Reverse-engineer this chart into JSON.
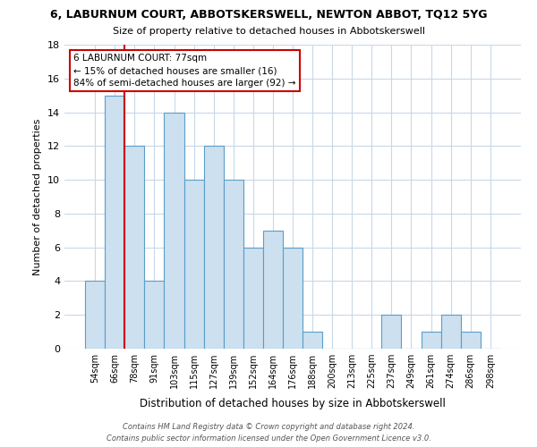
{
  "title": "6, LABURNUM COURT, ABBOTSKERSWELL, NEWTON ABBOT, TQ12 5YG",
  "subtitle": "Size of property relative to detached houses in Abbotskerswell",
  "xlabel": "Distribution of detached houses by size in Abbotskerswell",
  "ylabel": "Number of detached properties",
  "bin_labels": [
    "54sqm",
    "66sqm",
    "78sqm",
    "91sqm",
    "103sqm",
    "115sqm",
    "127sqm",
    "139sqm",
    "152sqm",
    "164sqm",
    "176sqm",
    "188sqm",
    "200sqm",
    "213sqm",
    "225sqm",
    "237sqm",
    "249sqm",
    "261sqm",
    "274sqm",
    "286sqm",
    "298sqm"
  ],
  "bar_heights": [
    4,
    15,
    12,
    4,
    14,
    10,
    12,
    10,
    6,
    7,
    6,
    1,
    0,
    0,
    0,
    2,
    0,
    1,
    2,
    1,
    0
  ],
  "bar_color": "#cce0f0",
  "bar_edge_color": "#5a9ec8",
  "subject_line_color": "#cc0000",
  "annotation_text": "6 LABURNUM COURT: 77sqm\n← 15% of detached houses are smaller (16)\n84% of semi-detached houses are larger (92) →",
  "annotation_box_color": "#ffffff",
  "annotation_box_edge": "#cc0000",
  "ylim": [
    0,
    18
  ],
  "yticks": [
    0,
    2,
    4,
    6,
    8,
    10,
    12,
    14,
    16,
    18
  ],
  "footer_line1": "Contains HM Land Registry data © Crown copyright and database right 2024.",
  "footer_line2": "Contains public sector information licensed under the Open Government Licence v3.0.",
  "background_color": "#ffffff",
  "grid_color": "#c8d8e8"
}
